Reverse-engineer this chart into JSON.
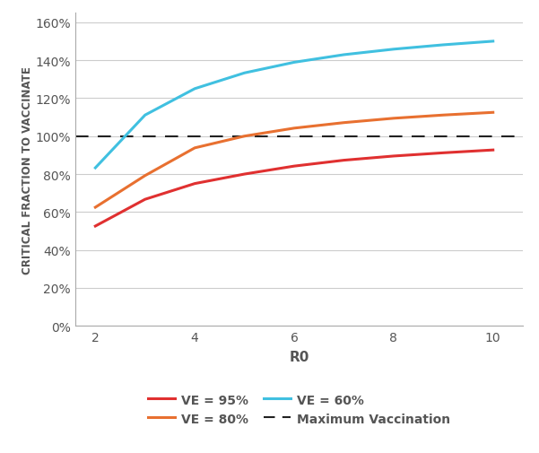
{
  "r0_values": [
    2,
    3,
    4,
    5,
    6,
    7,
    8,
    9,
    10
  ],
  "ve_95": [
    52.6,
    66.7,
    75.0,
    80.0,
    84.2,
    87.3,
    89.5,
    91.2,
    92.7
  ],
  "ve_80": [
    62.5,
    79.2,
    93.8,
    100.0,
    104.2,
    107.1,
    109.4,
    111.1,
    112.5
  ],
  "ve_60": [
    83.3,
    111.1,
    125.0,
    133.3,
    138.9,
    142.9,
    145.8,
    148.1,
    150.0
  ],
  "max_vac": 100.0,
  "color_95": "#e03030",
  "color_80": "#e87030",
  "color_60": "#40c0e0",
  "color_dashed": "#222222",
  "ylabel": "CRITICAL FRACTION TO VACCINATE",
  "xlabel": "R0",
  "ylim": [
    0,
    165
  ],
  "yticks": [
    0,
    20,
    40,
    60,
    80,
    100,
    120,
    140,
    160
  ],
  "xticks": [
    2,
    4,
    6,
    8,
    10
  ],
  "legend_ve95": "VE = 95%",
  "legend_ve80": "VE = 80%",
  "legend_ve60": "VE = 60%",
  "legend_maxvac": "Maximum Vaccination",
  "background_color": "#ffffff",
  "tick_color": "#555555",
  "spine_color": "#aaaaaa",
  "grid_color": "#cccccc"
}
